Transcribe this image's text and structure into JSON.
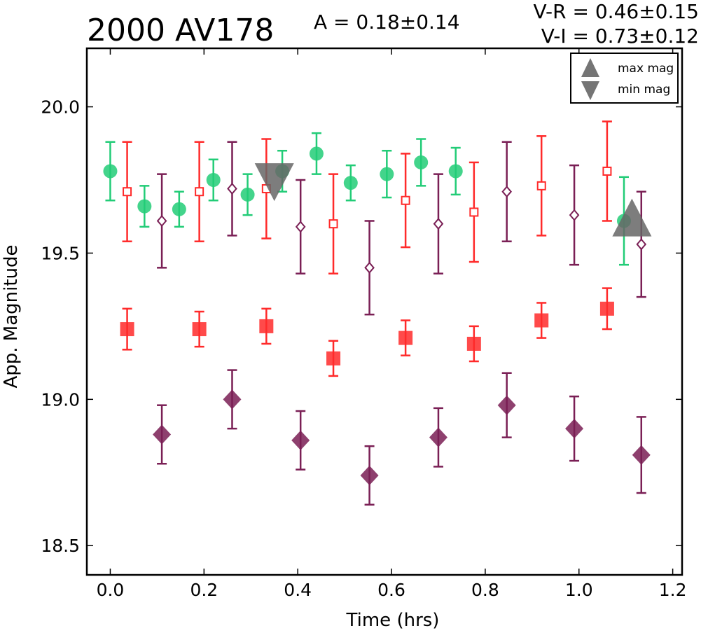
{
  "header": {
    "object_name": "2000 AV178",
    "amplitude": "A  = 0.18±0.14",
    "v_r": "V-R = 0.46±0.15",
    "v_i": "V-I  = 0.73±0.12"
  },
  "legend": {
    "max_label": "max mag",
    "min_label": "min mag"
  },
  "chart_data": {
    "type": "scatter",
    "xlabel": "Time (hrs)",
    "ylabel": "App. Magnitude",
    "xlim": [
      -0.05,
      1.22
    ],
    "ylim": [
      20.2,
      18.4
    ],
    "y_inverted": true,
    "xticks": [
      0.0,
      0.2,
      0.4,
      0.6,
      0.8,
      1.0,
      1.2
    ],
    "xtick_labels": [
      "0.0",
      "0.2",
      "0.4",
      "0.6",
      "0.8",
      "1.0",
      "1.2"
    ],
    "yticks": [
      18.5,
      19.0,
      19.5,
      20.0
    ],
    "ytick_labels": [
      "18.5",
      "19.0",
      "19.5",
      "20.0"
    ],
    "legend_position": "top-right",
    "colors": {
      "green": "#22cc77",
      "red": "#ff2a2a",
      "purple": "#7a1f55",
      "gray": "#666666"
    },
    "series": [
      {
        "marker": "filled-circle",
        "color": "#22cc77",
        "x": [
          0.0,
          0.073,
          0.147,
          0.22,
          0.293,
          0.367,
          0.44,
          0.513,
          0.59,
          0.663,
          0.737,
          1.096
        ],
        "y": [
          19.78,
          19.66,
          19.65,
          19.75,
          19.7,
          19.78,
          19.84,
          19.74,
          19.77,
          19.81,
          19.78,
          19.61
        ],
        "err": [
          0.1,
          0.07,
          0.06,
          0.07,
          0.07,
          0.07,
          0.07,
          0.06,
          0.08,
          0.08,
          0.08,
          0.15
        ]
      },
      {
        "marker": "filled-square",
        "color": "#ff2a2a",
        "x": [
          0.036,
          0.19,
          0.333,
          0.476,
          0.63,
          0.776,
          0.92,
          1.06
        ],
        "y": [
          19.24,
          19.24,
          19.25,
          19.14,
          19.21,
          19.19,
          19.27,
          19.31
        ],
        "err": [
          0.07,
          0.06,
          0.06,
          0.06,
          0.06,
          0.06,
          0.06,
          0.07
        ]
      },
      {
        "marker": "open-square",
        "color": "#ff2a2a",
        "x": [
          0.036,
          0.19,
          0.333,
          0.476,
          0.63,
          0.776,
          0.92,
          1.06
        ],
        "y": [
          19.71,
          19.71,
          19.72,
          19.6,
          19.68,
          19.64,
          19.73,
          19.78
        ],
        "err": [
          0.17,
          0.17,
          0.17,
          0.17,
          0.16,
          0.17,
          0.17,
          0.17
        ]
      },
      {
        "marker": "filled-diamond",
        "color": "#7a1f55",
        "x": [
          0.11,
          0.26,
          0.406,
          0.553,
          0.7,
          0.846,
          0.99,
          1.133
        ],
        "y": [
          18.88,
          19.0,
          18.86,
          18.74,
          18.87,
          18.98,
          18.9,
          18.81
        ],
        "err": [
          0.1,
          0.1,
          0.1,
          0.1,
          0.1,
          0.11,
          0.11,
          0.13
        ]
      },
      {
        "marker": "open-diamond",
        "color": "#7a1f55",
        "x": [
          0.11,
          0.26,
          0.406,
          0.553,
          0.7,
          0.846,
          0.99,
          1.133
        ],
        "y": [
          19.61,
          19.72,
          19.59,
          19.45,
          19.6,
          19.71,
          19.63,
          19.53
        ],
        "err": [
          0.16,
          0.16,
          0.16,
          0.16,
          0.17,
          0.17,
          0.17,
          0.18
        ]
      },
      {
        "marker": "triangle-up",
        "color": "#666666",
        "x": [
          1.113
        ],
        "y": [
          19.6
        ],
        "err": []
      },
      {
        "marker": "triangle-down",
        "color": "#666666",
        "x": [
          0.35
        ],
        "y": [
          19.74
        ],
        "err": []
      }
    ]
  }
}
